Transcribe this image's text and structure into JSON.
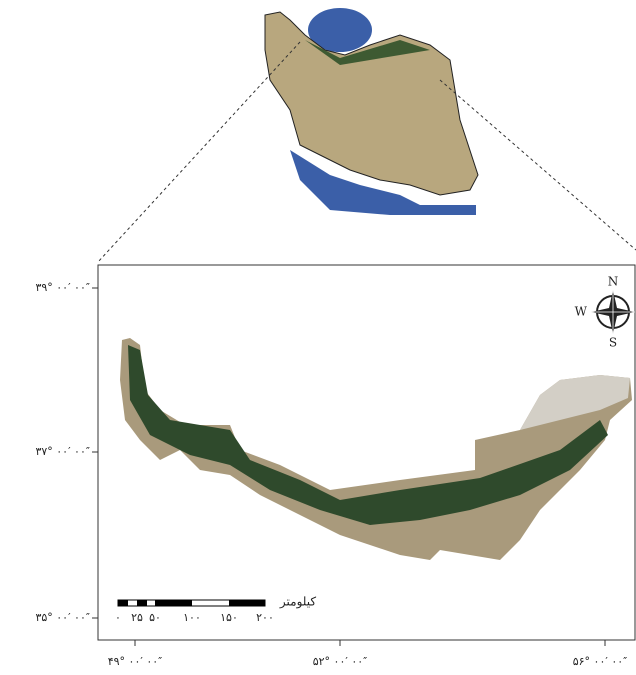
{
  "map": {
    "latitude_labels": [
      "۳۹° ۰۰′ ۰۰″",
      "۳۷° ۰۰′ ۰۰″",
      "۳۵° ۰۰′ ۰۰″"
    ],
    "longitude_labels": [
      "۴۹° ۰۰′ ۰۰″",
      "۵۲° ۰۰′ ۰۰″",
      "۵۶° ۰۰′ ۰۰″"
    ],
    "compass": {
      "north": "N",
      "south": "S",
      "west": "W"
    },
    "scale_bar": {
      "labels": [
        "۰",
        "۲۵",
        "۵۰",
        "۱۰۰",
        "۱۵۰",
        "۲۰۰"
      ],
      "unit": "کیلومتر"
    }
  }
}
